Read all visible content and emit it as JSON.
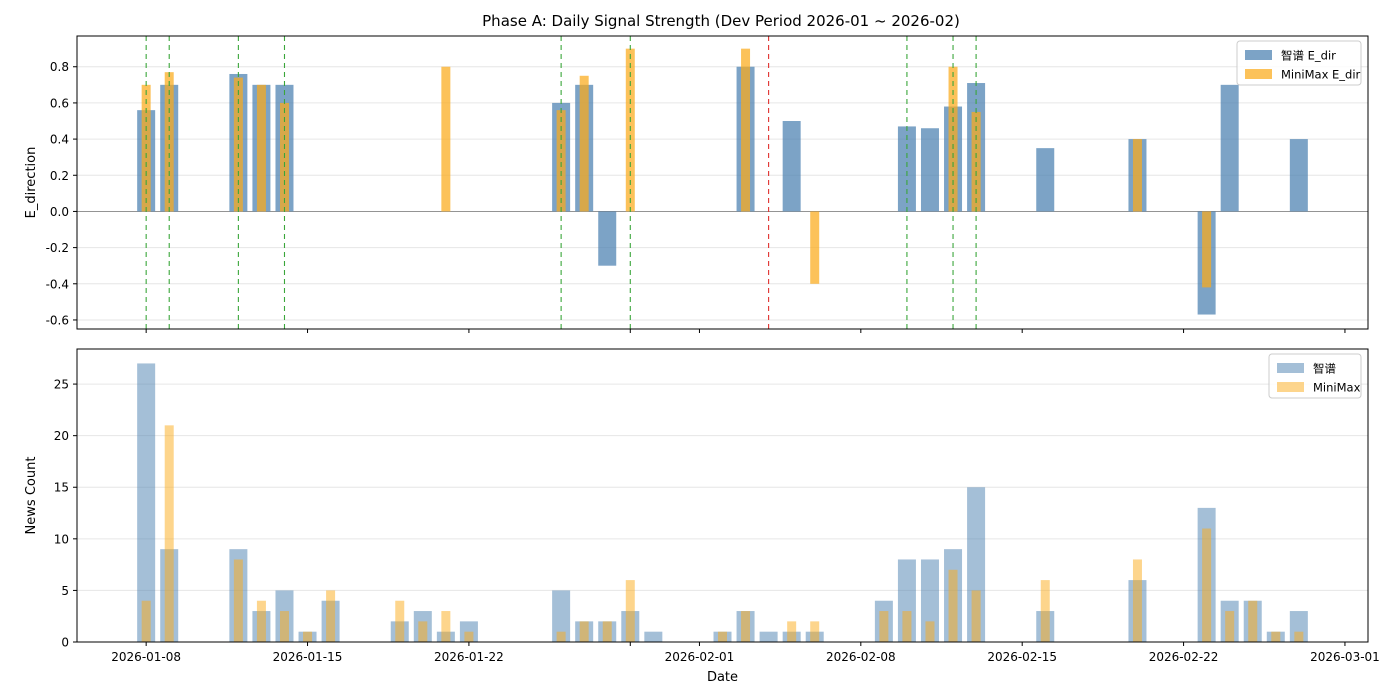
{
  "title": "Phase A: Daily Signal Strength (Dev Period 2026-01 ~ 2026-02)",
  "colors": {
    "blue": "#4a7fb0",
    "orange": "#fbab1a",
    "green_line": "#3aa63a",
    "red_line": "#e0312f",
    "grid": "#e6e6e6",
    "zero_line": "#888888"
  },
  "chart_data": [
    {
      "type": "bar",
      "subtype": "grouped-overlay",
      "ylabel": "E_direction",
      "ylim": [
        -0.65,
        0.97
      ],
      "yticks": [
        -0.6,
        -0.4,
        -0.2,
        0.0,
        0.2,
        0.4,
        0.6,
        0.8
      ],
      "ytick_labels": [
        "-0.6",
        "-0.4",
        "-0.2",
        "0.0",
        "0.2",
        "0.4",
        "0.6",
        "0.8"
      ],
      "grid": "horizontal",
      "legend_position": "top-right",
      "series": [
        {
          "name": "智谱 E_dir",
          "color": "#4a7fb0",
          "points": [
            [
              "2026-01-08",
              0.56
            ],
            [
              "2026-01-09",
              0.7
            ],
            [
              "2026-01-12",
              0.76
            ],
            [
              "2026-01-13",
              0.7
            ],
            [
              "2026-01-14",
              0.7
            ],
            [
              "2026-01-26",
              0.6
            ],
            [
              "2026-01-27",
              0.7
            ],
            [
              "2026-01-28",
              -0.3
            ],
            [
              "2026-02-03",
              0.8
            ],
            [
              "2026-02-05",
              0.5
            ],
            [
              "2026-02-10",
              0.47
            ],
            [
              "2026-02-11",
              0.46
            ],
            [
              "2026-02-12",
              0.58
            ],
            [
              "2026-02-13",
              0.71
            ],
            [
              "2026-02-16",
              0.35
            ],
            [
              "2026-02-20",
              0.4
            ],
            [
              "2026-02-23",
              -0.57
            ],
            [
              "2026-02-24",
              0.7
            ],
            [
              "2026-02-27",
              0.4
            ]
          ]
        },
        {
          "name": "MiniMax E_dir",
          "color": "#fbab1a",
          "points": [
            [
              "2026-01-08",
              0.7
            ],
            [
              "2026-01-09",
              0.77
            ],
            [
              "2026-01-12",
              0.74
            ],
            [
              "2026-01-13",
              0.7
            ],
            [
              "2026-01-14",
              0.6
            ],
            [
              "2026-01-21",
              0.8
            ],
            [
              "2026-01-26",
              0.56
            ],
            [
              "2026-01-27",
              0.75
            ],
            [
              "2026-01-29",
              0.9
            ],
            [
              "2026-02-03",
              0.9
            ],
            [
              "2026-02-06",
              -0.4
            ],
            [
              "2026-02-12",
              0.8
            ],
            [
              "2026-02-13",
              0.55
            ],
            [
              "2026-02-20",
              0.4
            ],
            [
              "2026-02-23",
              -0.42
            ]
          ]
        }
      ],
      "vlines": [
        {
          "date": "2026-01-08",
          "style": "green"
        },
        {
          "date": "2026-01-09",
          "style": "green"
        },
        {
          "date": "2026-01-12",
          "style": "green"
        },
        {
          "date": "2026-01-14",
          "style": "green"
        },
        {
          "date": "2026-01-26",
          "style": "green"
        },
        {
          "date": "2026-01-29",
          "style": "green"
        },
        {
          "date": "2026-02-04",
          "style": "red"
        },
        {
          "date": "2026-02-10",
          "style": "green"
        },
        {
          "date": "2026-02-12",
          "style": "green"
        },
        {
          "date": "2026-02-13",
          "style": "green"
        }
      ]
    },
    {
      "type": "bar",
      "subtype": "grouped-overlay",
      "xlabel": "Date",
      "ylabel": "News Count",
      "ylim": [
        0,
        28.4
      ],
      "yticks": [
        0,
        5,
        10,
        15,
        20,
        25
      ],
      "ytick_labels": [
        "0",
        "5",
        "10",
        "15",
        "20",
        "25"
      ],
      "grid": "horizontal",
      "legend_position": "top-right",
      "series": [
        {
          "name": "智谱",
          "color": "#4a7fb0",
          "points": [
            [
              "2026-01-08",
              27
            ],
            [
              "2026-01-09",
              9
            ],
            [
              "2026-01-12",
              9
            ],
            [
              "2026-01-13",
              3
            ],
            [
              "2026-01-14",
              5
            ],
            [
              "2026-01-15",
              1
            ],
            [
              "2026-01-16",
              4
            ],
            [
              "2026-01-19",
              2
            ],
            [
              "2026-01-20",
              3
            ],
            [
              "2026-01-21",
              1
            ],
            [
              "2026-01-22",
              2
            ],
            [
              "2026-01-26",
              5
            ],
            [
              "2026-01-27",
              2
            ],
            [
              "2026-01-28",
              2
            ],
            [
              "2026-01-29",
              3
            ],
            [
              "2026-01-30",
              1
            ],
            [
              "2026-02-02",
              1
            ],
            [
              "2026-02-03",
              3
            ],
            [
              "2026-02-04",
              1
            ],
            [
              "2026-02-05",
              1
            ],
            [
              "2026-02-06",
              1
            ],
            [
              "2026-02-09",
              4
            ],
            [
              "2026-02-10",
              8
            ],
            [
              "2026-02-11",
              8
            ],
            [
              "2026-02-12",
              9
            ],
            [
              "2026-02-13",
              15
            ],
            [
              "2026-02-16",
              3
            ],
            [
              "2026-02-20",
              6
            ],
            [
              "2026-02-23",
              13
            ],
            [
              "2026-02-24",
              4
            ],
            [
              "2026-02-25",
              4
            ],
            [
              "2026-02-26",
              1
            ],
            [
              "2026-02-27",
              3
            ]
          ]
        },
        {
          "name": "MiniMax",
          "color": "#fbab1a",
          "points": [
            [
              "2026-01-08",
              4
            ],
            [
              "2026-01-09",
              21
            ],
            [
              "2026-01-12",
              8
            ],
            [
              "2026-01-13",
              4
            ],
            [
              "2026-01-14",
              3
            ],
            [
              "2026-01-15",
              1
            ],
            [
              "2026-01-16",
              5
            ],
            [
              "2026-01-19",
              4
            ],
            [
              "2026-01-20",
              2
            ],
            [
              "2026-01-21",
              3
            ],
            [
              "2026-01-22",
              1
            ],
            [
              "2026-01-26",
              1
            ],
            [
              "2026-01-27",
              2
            ],
            [
              "2026-01-28",
              2
            ],
            [
              "2026-01-29",
              6
            ],
            [
              "2026-02-02",
              1
            ],
            [
              "2026-02-03",
              3
            ],
            [
              "2026-02-05",
              2
            ],
            [
              "2026-02-06",
              2
            ],
            [
              "2026-02-09",
              3
            ],
            [
              "2026-02-10",
              3
            ],
            [
              "2026-02-11",
              2
            ],
            [
              "2026-02-12",
              7
            ],
            [
              "2026-02-13",
              5
            ],
            [
              "2026-02-16",
              6
            ],
            [
              "2026-02-20",
              8
            ],
            [
              "2026-02-23",
              11
            ],
            [
              "2026-02-24",
              3
            ],
            [
              "2026-02-25",
              4
            ],
            [
              "2026-02-26",
              1
            ],
            [
              "2026-02-27",
              1
            ]
          ]
        }
      ]
    }
  ],
  "x_axis": {
    "range": [
      "2026-01-05",
      "2026-03-02"
    ],
    "ticks": [
      "2026-01-08",
      "2026-01-15",
      "2026-01-22",
      "2026-02-01",
      "2026-02-08",
      "2026-02-15",
      "2026-02-22",
      "2026-03-01"
    ],
    "minor_ticks": [
      "2026-01-29"
    ],
    "tick_labels": [
      "2026-01-08",
      "2026-01-15",
      "2026-01-22",
      "2026-02-01",
      "2026-02-08",
      "2026-02-15",
      "2026-02-22",
      "2026-03-01"
    ]
  }
}
